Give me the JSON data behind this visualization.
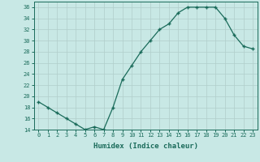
{
  "x": [
    0,
    1,
    2,
    3,
    4,
    5,
    6,
    7,
    8,
    9,
    10,
    11,
    12,
    13,
    14,
    15,
    16,
    17,
    18,
    19,
    20,
    21,
    22,
    23
  ],
  "y": [
    19,
    18,
    17,
    16,
    15,
    14,
    14.5,
    14,
    18,
    23,
    25.5,
    28,
    30,
    32,
    33,
    35,
    36,
    36,
    36,
    36,
    34,
    31,
    29,
    28.5
  ],
  "xlabel": "Humidex (Indice chaleur)",
  "ylabel": "",
  "line_color": "#1a6b5a",
  "bg_color": "#c8e8e5",
  "grid_color": "#b0ceca",
  "ylim": [
    14,
    37
  ],
  "yticks": [
    14,
    16,
    18,
    20,
    22,
    24,
    26,
    28,
    30,
    32,
    34,
    36
  ],
  "xticks": [
    0,
    1,
    2,
    3,
    4,
    5,
    6,
    7,
    8,
    9,
    10,
    11,
    12,
    13,
    14,
    15,
    16,
    17,
    18,
    19,
    20,
    21,
    22,
    23
  ],
  "marker": "+",
  "markersize": 3.5,
  "linewidth": 0.9,
  "tick_fontsize": 5.0,
  "xlabel_fontsize": 6.5
}
